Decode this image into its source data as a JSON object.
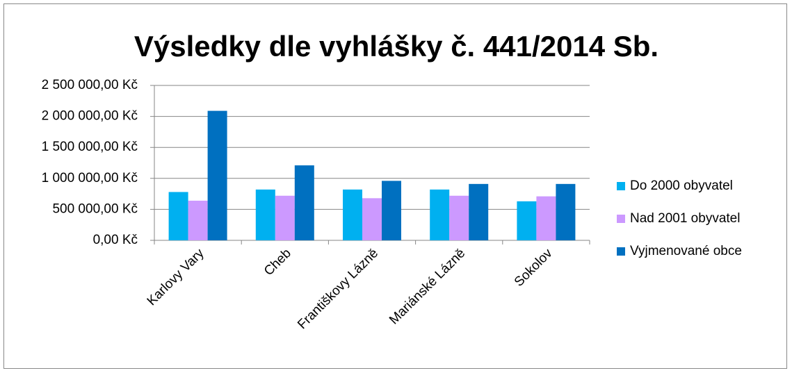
{
  "chart_data": {
    "type": "bar",
    "title": "Výsledky dle vyhlášky č. 441/2014 Sb.",
    "categories": [
      "Karlovy Vary",
      "Cheb",
      "Františkovy Lázně",
      "Mariánské Lázně",
      "Sokolov"
    ],
    "series": [
      {
        "name": "Do 2000 obyvatel",
        "color": "#00b0f0",
        "values": [
          780000,
          820000,
          820000,
          820000,
          630000
        ]
      },
      {
        "name": "Nad 2001 obyvatel",
        "color": "#cc99ff",
        "values": [
          640000,
          720000,
          680000,
          720000,
          710000
        ]
      },
      {
        "name": "Vyjmenované obce",
        "color": "#0070c0",
        "values": [
          2090000,
          1210000,
          960000,
          910000,
          910000
        ]
      }
    ],
    "ylim": [
      0,
      2500000
    ],
    "yticks": [
      {
        "value": 0,
        "label": "0,00 Kč"
      },
      {
        "value": 500000,
        "label": "500 000,00 Kč"
      },
      {
        "value": 1000000,
        "label": "1 000 000,00 Kč"
      },
      {
        "value": 1500000,
        "label": "1 500 000,00 Kč"
      },
      {
        "value": 2000000,
        "label": "2 000 000,00 Kč"
      },
      {
        "value": 2500000,
        "label": "2 500 000,00 Kč"
      }
    ],
    "grid": true,
    "legend": "right"
  }
}
